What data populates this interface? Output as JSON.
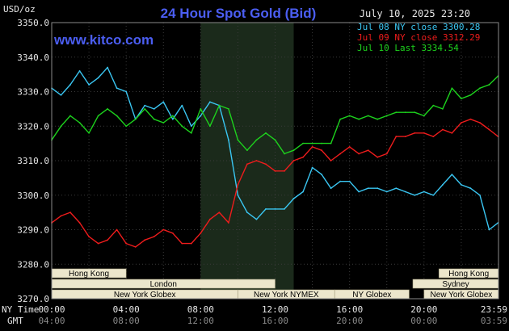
{
  "chart_data": {
    "type": "line",
    "title": "24 Hour Spot Gold (Bid)",
    "subtitle": "www.kitco.com",
    "date_stamp": "July 10, 2025 23:20",
    "ylabel": "USD/oz",
    "ylim": [
      3270,
      3350
    ],
    "yticks": [
      "3270.0",
      "3280.0",
      "3290.0",
      "3300.0",
      "3310.0",
      "3320.0",
      "3330.0",
      "3340.0",
      "3350.0"
    ],
    "grid": true,
    "legend_position": "top-right",
    "x_row_label_ny": "NY Time",
    "x_row_label_gmt": "GMT",
    "xticks_ny": [
      "00:00",
      "04:00",
      "08:00",
      "12:00",
      "16:00",
      "20:00",
      "23:59"
    ],
    "xticks_gmt": [
      "04:00",
      "08:00",
      "12:00",
      "16:00",
      "20:00",
      "00:00",
      "03:59"
    ],
    "x_hours": [
      0,
      4,
      8,
      12,
      16,
      20,
      23.98
    ],
    "shaded_hours": [
      8,
      13
    ],
    "colors": {
      "jul08": "#3ac6f2",
      "jul09": "#ee1c1c",
      "jul10": "#1dd21d",
      "title": "#4b5ef2",
      "axis_text": "#e6e6e6",
      "grid": "#3a3a3a",
      "session_fill": "#ece6cc",
      "shade": "#1b2a1b"
    },
    "series": [
      {
        "key": "jul08",
        "name": "Jul 08 NY close 3300.28",
        "x": [
          0,
          0.5,
          1,
          1.5,
          2,
          2.5,
          3,
          3.5,
          4,
          4.5,
          5,
          5.5,
          6,
          6.5,
          7,
          7.5,
          8,
          8.5,
          9,
          9.5,
          10,
          10.5,
          11,
          11.5,
          12,
          12.5,
          13,
          13.5,
          14,
          14.5,
          15,
          15.5,
          16,
          16.5,
          17,
          17.5,
          18,
          18.5,
          19,
          19.5,
          20,
          20.5,
          21,
          21.5,
          22,
          22.5,
          23,
          23.5,
          23.98
        ],
        "values": [
          3331,
          3329,
          3332,
          3336,
          3332,
          3334,
          3337,
          3331,
          3330,
          3322,
          3326,
          3325,
          3327,
          3322,
          3326,
          3320,
          3323,
          3327,
          3326,
          3316,
          3300,
          3295,
          3293,
          3296,
          3296,
          3296,
          3299,
          3301,
          3308,
          3306,
          3302,
          3304,
          3304,
          3301,
          3302,
          3302,
          3301,
          3302,
          3301,
          3300,
          3301,
          3300,
          3303,
          3306,
          3303,
          3302,
          3300,
          3290,
          3292
        ]
      },
      {
        "key": "jul09",
        "name": "Jul 09 NY close 3312.29",
        "x": [
          0,
          0.5,
          1,
          1.5,
          2,
          2.5,
          3,
          3.5,
          4,
          4.5,
          5,
          5.5,
          6,
          6.5,
          7,
          7.5,
          8,
          8.5,
          9,
          9.5,
          10,
          10.5,
          11,
          11.5,
          12,
          12.5,
          13,
          13.5,
          14,
          14.5,
          15,
          15.5,
          16,
          16.5,
          17,
          17.5,
          18,
          18.5,
          19,
          19.5,
          20,
          20.5,
          21,
          21.5,
          22,
          22.5,
          23,
          23.5,
          23.98
        ],
        "values": [
          3292,
          3294,
          3295,
          3292,
          3288,
          3286,
          3287,
          3290,
          3286,
          3285,
          3287,
          3288,
          3290,
          3289,
          3286,
          3286,
          3289,
          3293,
          3295,
          3292,
          3303,
          3309,
          3310,
          3309,
          3307,
          3307,
          3310,
          3311,
          3314,
          3313,
          3310,
          3312,
          3314,
          3312,
          3313,
          3311,
          3312,
          3317,
          3317,
          3318,
          3318,
          3317,
          3319,
          3318,
          3321,
          3322,
          3321,
          3319,
          3317
        ]
      },
      {
        "key": "jul10",
        "name": "Jul 10 Last 3334.54",
        "x": [
          0,
          0.5,
          1,
          1.5,
          2,
          2.5,
          3,
          3.5,
          4,
          4.5,
          5,
          5.5,
          6,
          6.5,
          7,
          7.5,
          8,
          8.5,
          9,
          9.5,
          10,
          10.5,
          11,
          11.5,
          12,
          12.5,
          13,
          13.5,
          14,
          14.5,
          15,
          15.5,
          16,
          16.5,
          17,
          17.5,
          18,
          18.5,
          19,
          19.5,
          20,
          20.5,
          21,
          21.5,
          22,
          22.5,
          23,
          23.5,
          23.98
        ],
        "values": [
          3316,
          3320,
          3323,
          3321,
          3318,
          3323,
          3325,
          3323,
          3320,
          3322,
          3325,
          3322,
          3321,
          3323,
          3320,
          3318,
          3325,
          3320,
          3326,
          3325,
          3316,
          3313,
          3316,
          3318,
          3316,
          3312,
          3313,
          3315,
          3315,
          3315,
          3315,
          3322,
          3323,
          3322,
          3323,
          3322,
          3323,
          3324,
          3324,
          3324,
          3323,
          3326,
          3325,
          3331,
          3328,
          3329,
          3331,
          3332,
          3334.54
        ]
      }
    ],
    "sessions": [
      {
        "label": "Hong Kong",
        "row": 0,
        "start": 0,
        "end": 4
      },
      {
        "label": "London",
        "row": 1,
        "start": 0,
        "end": 12
      },
      {
        "label": "New York Globex",
        "row": 2,
        "start": 0,
        "end": 10
      },
      {
        "label": "New York NYMEX",
        "row": 2,
        "start": 10,
        "end": 15.2
      },
      {
        "label": "NY Globex",
        "row": 2,
        "start": 15.2,
        "end": 19.2
      },
      {
        "label": "Hong Kong",
        "row": 0,
        "start": 20.8,
        "end": 24
      },
      {
        "label": "Sydney",
        "row": 1,
        "start": 19.4,
        "end": 24
      },
      {
        "label": "New York Globex",
        "row": 2,
        "start": 20,
        "end": 24
      }
    ]
  }
}
